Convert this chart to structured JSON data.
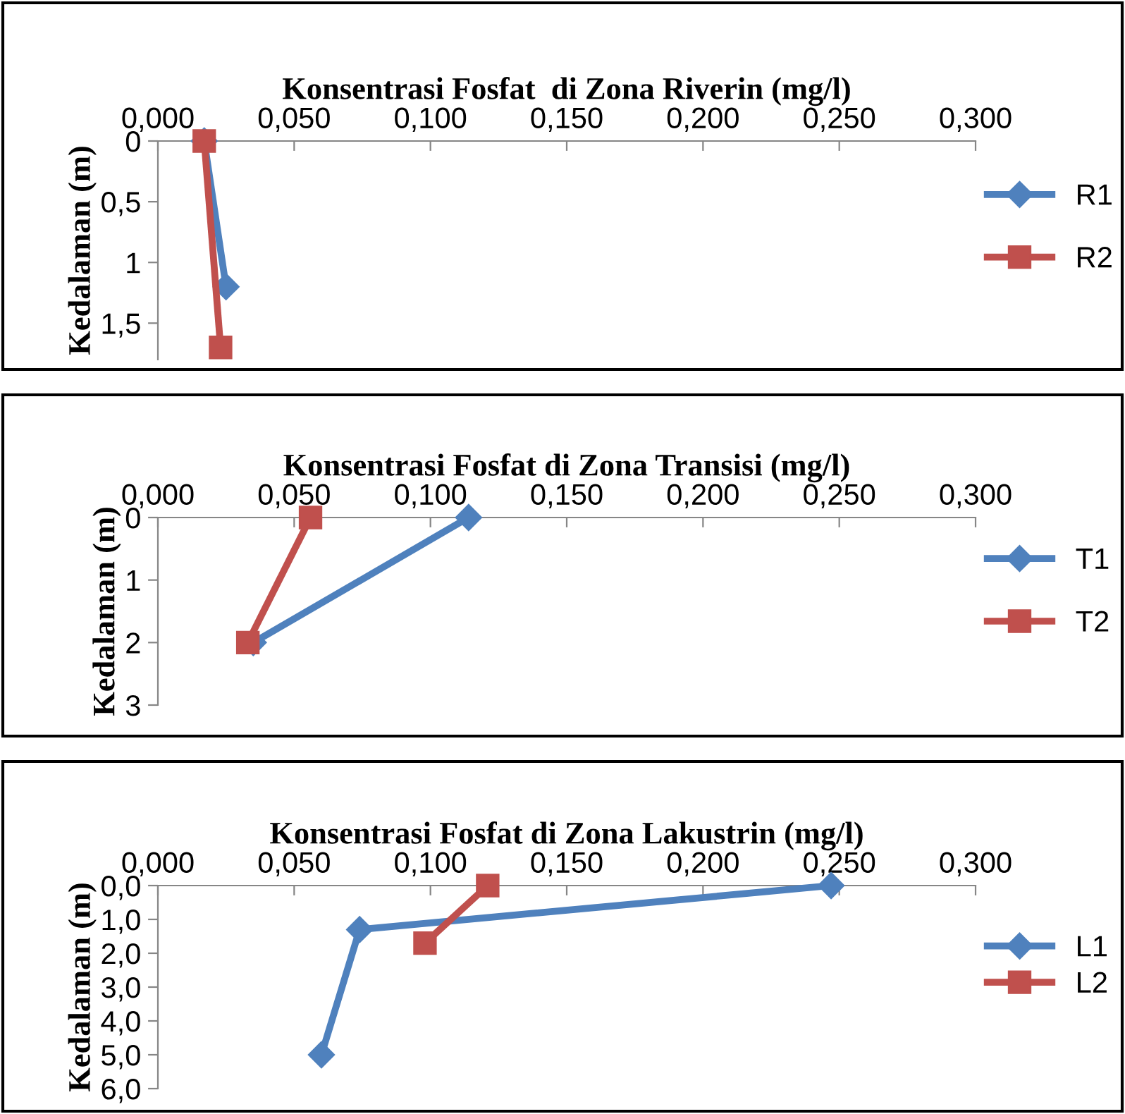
{
  "chart_data": [
    {
      "type": "line",
      "xlabel": "Konsentrasi Fosfat  di Zona Riverin (mg/l)",
      "ylabel": "Kedalaman (m)",
      "legend": "right",
      "grid": false,
      "xlim": [
        0,
        0.3
      ],
      "ylim": [
        1.8,
        0
      ],
      "xticks": [
        {
          "value": 0,
          "label": "0,000"
        },
        {
          "value": 0.05,
          "label": "0,050"
        },
        {
          "value": 0.1,
          "label": "0,100"
        },
        {
          "value": 0.15,
          "label": "0,150"
        },
        {
          "value": 0.2,
          "label": "0,200"
        },
        {
          "value": 0.25,
          "label": "0,250"
        },
        {
          "value": 0.3,
          "label": "0,300"
        }
      ],
      "yticks": [
        0,
        {
          "value": 0.5,
          "label": "0,5"
        },
        1,
        {
          "value": 1.5,
          "label": "1,5"
        }
      ],
      "series": [
        {
          "name": "R1",
          "color": "#4f81bd",
          "marker": "diamond",
          "x": [
            0.017,
            0.025
          ],
          "values": [
            0,
            1.2
          ]
        },
        {
          "name": "R2",
          "color": "#c0504d",
          "marker": "square",
          "x": [
            0.017,
            0.023
          ],
          "values": [
            0,
            1.7
          ]
        }
      ]
    },
    {
      "type": "line",
      "xlabel": "Konsentrasi Fosfat di Zona Transisi (mg/l)",
      "ylabel": "Kedalaman (m)",
      "legend": "right",
      "grid": false,
      "xlim": [
        0,
        0.3
      ],
      "ylim": [
        3,
        0
      ],
      "xticks": [
        {
          "value": 0,
          "label": "0,000"
        },
        {
          "value": 0.05,
          "label": "0,050"
        },
        {
          "value": 0.1,
          "label": "0,100"
        },
        {
          "value": 0.15,
          "label": "0,150"
        },
        {
          "value": 0.2,
          "label": "0,200"
        },
        {
          "value": 0.25,
          "label": "0,250"
        },
        {
          "value": 0.3,
          "label": "0,300"
        }
      ],
      "yticks": [
        0,
        1,
        2,
        3
      ],
      "series": [
        {
          "name": "T1",
          "color": "#4f81bd",
          "marker": "diamond",
          "x": [
            0.114,
            0.035
          ],
          "values": [
            0,
            2
          ]
        },
        {
          "name": "T2",
          "color": "#c0504d",
          "marker": "square",
          "x": [
            0.056,
            0.033
          ],
          "values": [
            0,
            2
          ]
        }
      ]
    },
    {
      "type": "line",
      "xlabel": "Konsentrasi Fosfat di Zona Lakustrin (mg/l)",
      "ylabel": "Kedalaman (m)",
      "legend": "right",
      "grid": false,
      "xlim": [
        0,
        0.3
      ],
      "ylim": [
        6,
        0
      ],
      "xticks": [
        {
          "value": 0,
          "label": "0,000"
        },
        {
          "value": 0.05,
          "label": "0,050"
        },
        {
          "value": 0.1,
          "label": "0,100"
        },
        {
          "value": 0.15,
          "label": "0,150"
        },
        {
          "value": 0.2,
          "label": "0,200"
        },
        {
          "value": 0.25,
          "label": "0,250"
        },
        {
          "value": 0.3,
          "label": "0,300"
        }
      ],
      "yticks": [
        {
          "value": 0,
          "label": "0,0"
        },
        {
          "value": 1,
          "label": "1,0"
        },
        {
          "value": 2,
          "label": "2,0"
        },
        {
          "value": 3,
          "label": "3,0"
        },
        {
          "value": 4,
          "label": "4,0"
        },
        {
          "value": 5,
          "label": "5,0"
        },
        {
          "value": 6,
          "label": "6,0"
        }
      ],
      "series": [
        {
          "name": "L1",
          "color": "#4f81bd",
          "marker": "diamond",
          "x": [
            0.247,
            0.074,
            0.06
          ],
          "values": [
            0,
            1.3,
            5
          ]
        },
        {
          "name": "L2",
          "color": "#c0504d",
          "marker": "square",
          "x": [
            0.121,
            0.098
          ],
          "values": [
            0,
            1.7
          ]
        }
      ]
    }
  ]
}
